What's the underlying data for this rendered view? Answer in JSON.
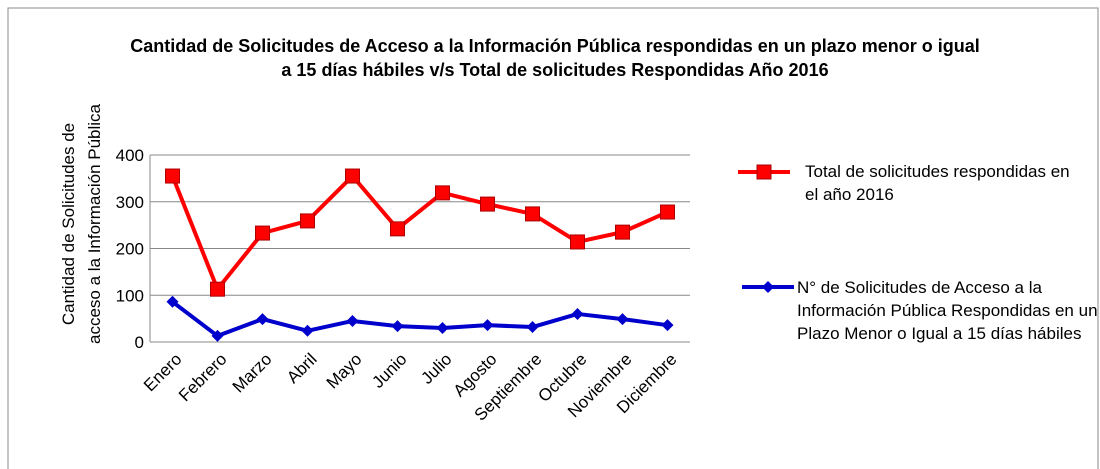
{
  "chart_data": {
    "type": "line",
    "title": "Cantidad de Solicitudes de Acceso a la Información Pública respondidas en un plazo menor o igual a 15 días hábiles v/s Total de solicitudes Respondidas Año 2016",
    "y_label": "Cantidad de  Solicitudes de acceso a la Información Pública",
    "categories": [
      "Enero",
      "Febrero",
      "Marzo",
      "Abril",
      "Mayo",
      "Junio",
      "Julio",
      "Agosto",
      "Septiembre",
      "Octubre",
      "Noviembre",
      "Diciembre"
    ],
    "series": [
      {
        "name": "Total de solicitudes respondidas en el año 2016",
        "color": "#ff0000",
        "marker": "square",
        "values": [
          355,
          113,
          233,
          259,
          355,
          242,
          319,
          295,
          274,
          214,
          235,
          278
        ]
      },
      {
        "name": "N° de Solicitudes de Acceso a la Información Pública Respondidas en un Plazo Menor o Igual a 15 días hábiles",
        "color": "#0000cc",
        "marker": "diamond",
        "values": [
          86,
          13,
          49,
          24,
          45,
          34,
          30,
          36,
          32,
          60,
          49,
          36
        ]
      }
    ],
    "ylim": [
      0,
      400
    ],
    "yticks": [
      0,
      100,
      200,
      300,
      400
    ],
    "grid": true,
    "legend": "right"
  }
}
